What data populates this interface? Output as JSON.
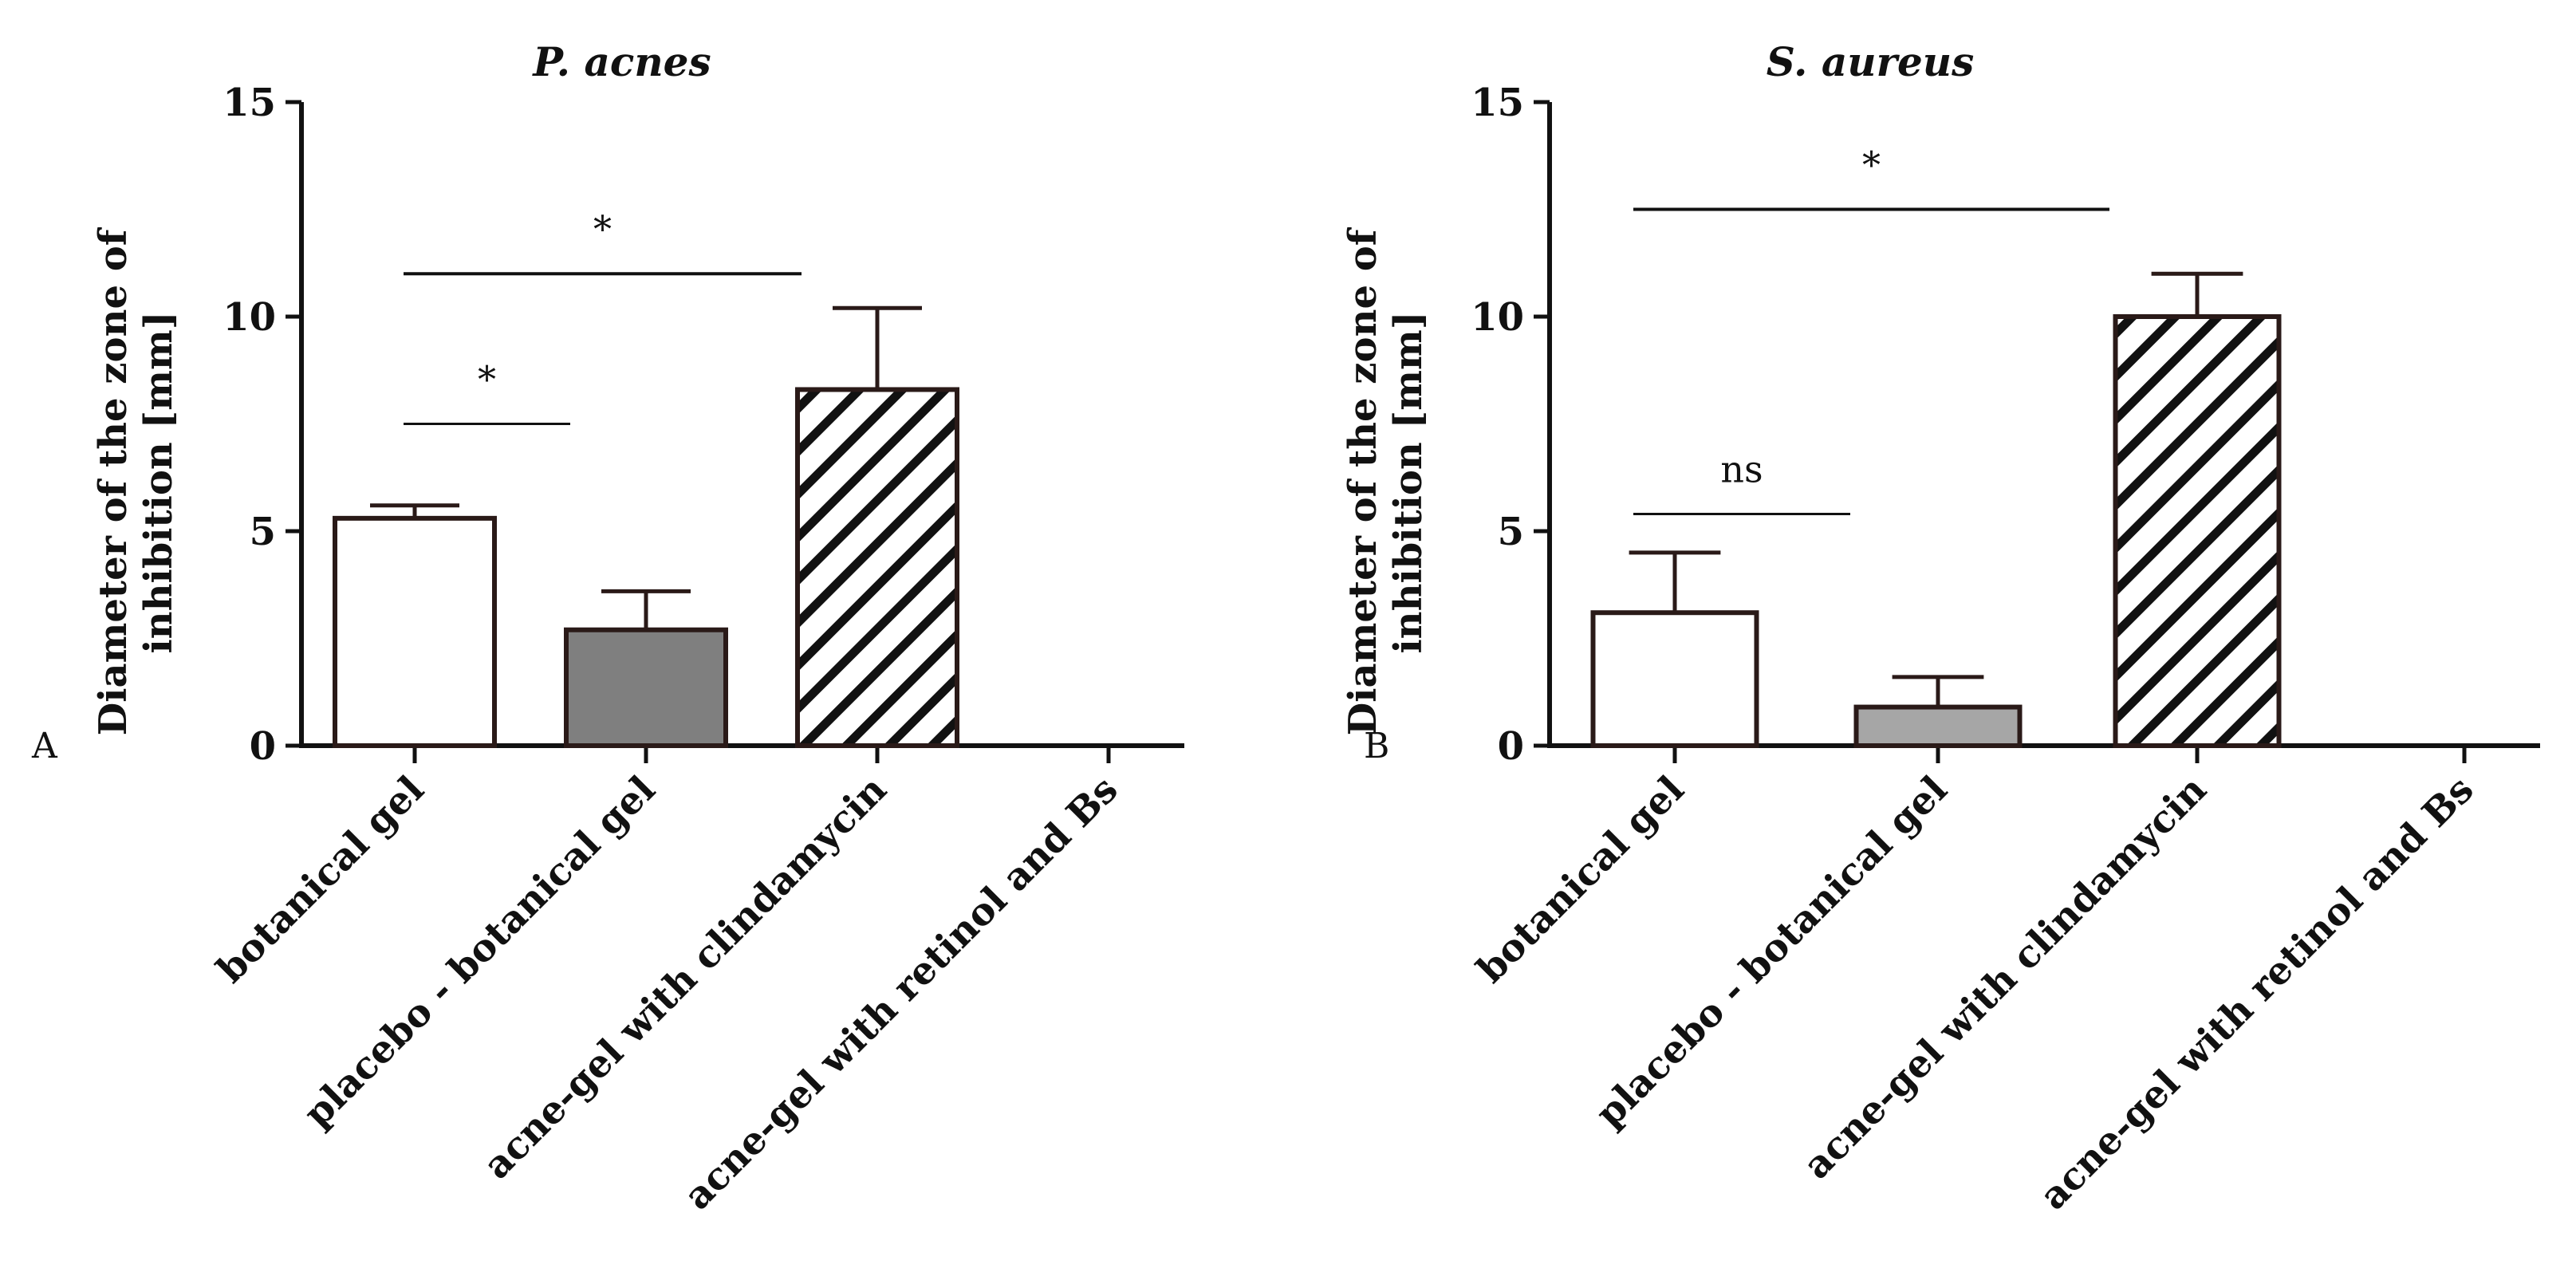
{
  "chart_data": [
    {
      "type": "bar",
      "panel_label": "A",
      "title": "P. acnes",
      "ylabel_lines": [
        "Diameter of the zone of",
        "inhibition [mm]"
      ],
      "xlabel": "",
      "ylim": [
        0,
        15
      ],
      "yticks": [
        0,
        5,
        10,
        15
      ],
      "categories": [
        "botanical gel",
        "placebo - botanical gel",
        "acne-gel with clindamycin",
        "acne-gel with retinol and Bs"
      ],
      "values": [
        5.3,
        2.7,
        8.3,
        0
      ],
      "errors": [
        0.3,
        0.9,
        1.9,
        0
      ],
      "fills": [
        "white",
        "gray",
        "hatch",
        "none"
      ],
      "significance": [
        {
          "from": 0,
          "to": 2,
          "y": 11.0,
          "label": "*"
        },
        {
          "from": 0,
          "to": 1,
          "y": 7.5,
          "label": "*"
        }
      ]
    },
    {
      "type": "bar",
      "panel_label": "B",
      "title": "S. aureus",
      "ylabel_lines": [
        "Diameter of the zone of",
        "inhibition [mm]"
      ],
      "xlabel": "",
      "ylim": [
        0,
        15
      ],
      "yticks": [
        0,
        5,
        10,
        15
      ],
      "categories": [
        "botanical gel",
        "placebo - botanical gel",
        "acne-gel with clindamycin",
        "acne-gel with retinol and Bs"
      ],
      "values": [
        3.1,
        0.9,
        10.0,
        0
      ],
      "errors": [
        1.4,
        0.7,
        1.0,
        0
      ],
      "fills": [
        "white",
        "lightgray",
        "hatch",
        "none"
      ],
      "significance": [
        {
          "from": 0,
          "to": 2,
          "y": 12.5,
          "label": "*"
        },
        {
          "from": 0,
          "to": 1,
          "y": 5.4,
          "label": "ns"
        }
      ]
    }
  ],
  "colors": {
    "axis": "#111111",
    "gray_fill": "#7f7f7f",
    "lightgray_fill": "#a6a6a6",
    "bar_edge": "#2a1a18"
  }
}
